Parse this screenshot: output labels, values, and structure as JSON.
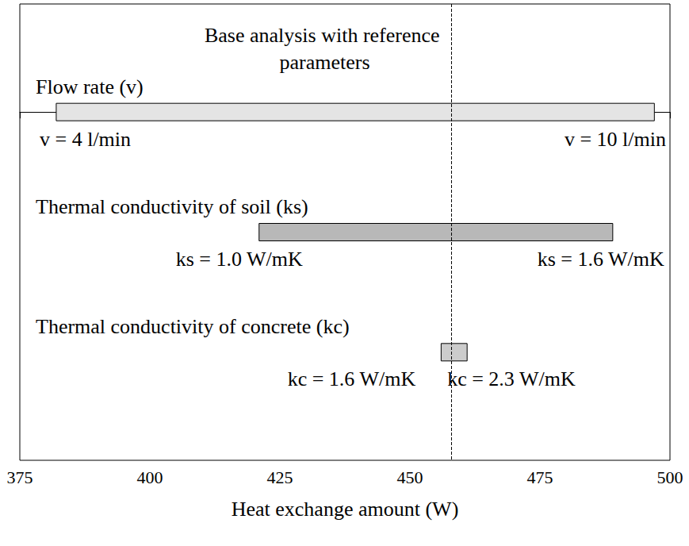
{
  "chart_data": {
    "type": "bar",
    "orientation": "horizontal",
    "annotation": "Base analysis with reference parameters",
    "reference": 458,
    "xlabel": "Heat exchange amount (W)",
    "categories": [
      "Flow rate (v)",
      "Thermal conductivity of soil (ks)",
      "Thermal conductivity of concrete (kc)"
    ],
    "low": [
      382,
      421,
      456
    ],
    "high": [
      497,
      489,
      461
    ],
    "low_labels": [
      "v = 4 l/min",
      "ks = 1.0 W/mK",
      "kc = 1.6 W/mK"
    ],
    "high_labels": [
      "v = 10 l/min",
      "ks = 1.6 W/mK",
      "kc = 2.3 W/mK"
    ],
    "colors": [
      "#e4e4e4",
      "#b8b8b8",
      "#cccccc"
    ],
    "xlim": [
      375,
      500
    ],
    "xticks": [
      375,
      400,
      425,
      450,
      475,
      500
    ],
    "grid": false,
    "tick_labels": "x"
  }
}
